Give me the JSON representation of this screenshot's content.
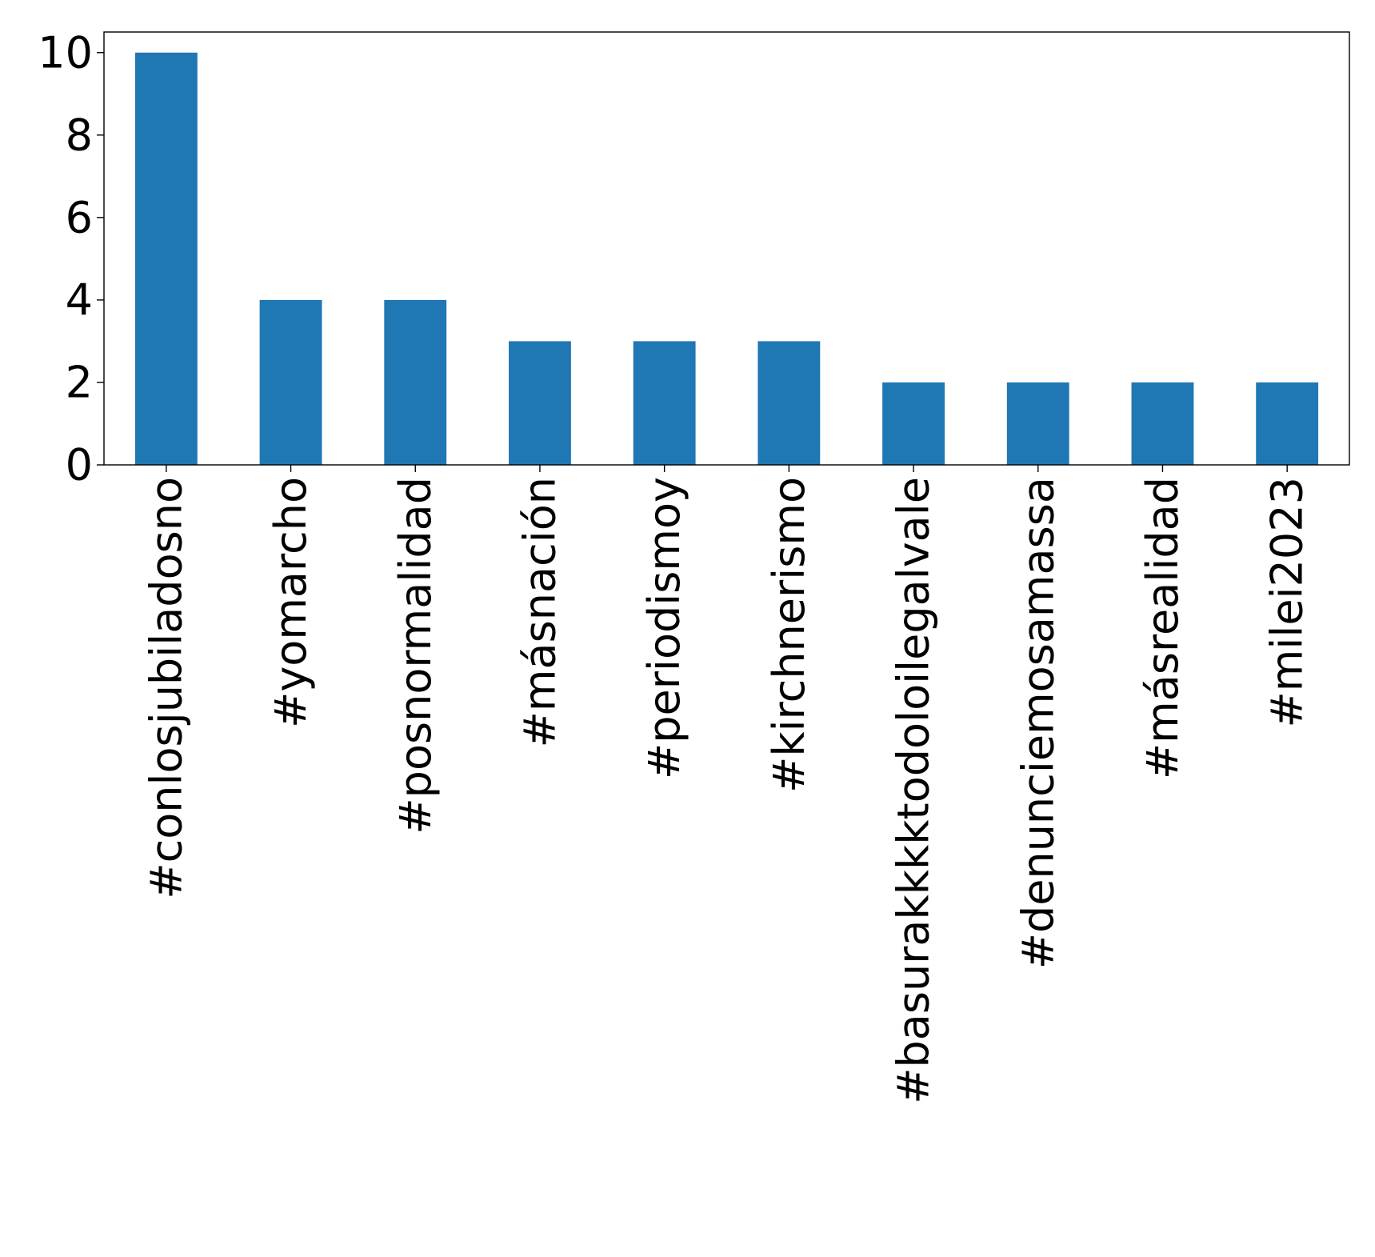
{
  "chart_data": {
    "type": "bar",
    "title": "",
    "xlabel": "",
    "ylabel": "",
    "categories": [
      "#conlosjubiladosno",
      "#yomarcho",
      "#posnormalidad",
      "#másnación",
      "#periodismoy",
      "#kirchnerismo",
      "#basurakkkktodoloilegalvale",
      "#denunciemosamassa",
      "#másrealidad",
      "#milei2023"
    ],
    "values": [
      10,
      4,
      4,
      3,
      3,
      3,
      2,
      2,
      2,
      2
    ],
    "ylim": [
      0,
      10.5
    ],
    "yticks": [
      0,
      2,
      4,
      6,
      8,
      10
    ],
    "grid": false,
    "legend": "none",
    "colors": {
      "bar": "#1f77b4",
      "axis": "#000000",
      "background": "#ffffff"
    }
  }
}
